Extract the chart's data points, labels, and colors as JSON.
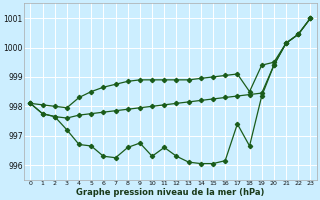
{
  "x": [
    0,
    1,
    2,
    3,
    4,
    5,
    6,
    7,
    8,
    9,
    10,
    11,
    12,
    13,
    14,
    15,
    16,
    17,
    18,
    19,
    20,
    21,
    22,
    23
  ],
  "line_top": [
    998.1,
    998.05,
    998.0,
    997.95,
    998.3,
    998.5,
    998.65,
    998.75,
    998.85,
    998.9,
    998.9,
    998.9,
    998.9,
    998.9,
    998.95,
    999.0,
    999.05,
    999.1,
    998.5,
    999.4,
    999.5,
    1000.15,
    1000.45,
    1001.0
  ],
  "line_mid": [
    998.1,
    997.75,
    997.65,
    997.6,
    997.7,
    997.75,
    997.8,
    997.85,
    997.9,
    997.95,
    998.0,
    998.05,
    998.1,
    998.15,
    998.2,
    998.25,
    998.3,
    998.35,
    998.4,
    998.45,
    999.4,
    1000.15,
    1000.45,
    1001.0
  ],
  "line_bot": [
    998.1,
    997.75,
    997.65,
    997.2,
    996.7,
    996.65,
    996.3,
    996.25,
    996.6,
    996.75,
    996.3,
    996.6,
    996.3,
    996.1,
    996.05,
    996.05,
    996.15,
    997.4,
    996.65,
    998.35,
    999.4,
    1000.15,
    1000.45,
    1001.0
  ],
  "bg_color": "#cceeff",
  "line_color": "#1a5c1a",
  "grid_color": "#ffffff",
  "xlabel": "Graphe pression niveau de la mer (hPa)",
  "ylim": [
    995.5,
    1001.5
  ],
  "yticks": [
    996,
    997,
    998,
    999,
    1000,
    1001
  ],
  "xticks": [
    0,
    1,
    2,
    3,
    4,
    5,
    6,
    7,
    8,
    9,
    10,
    11,
    12,
    13,
    14,
    15,
    16,
    17,
    18,
    19,
    20,
    21,
    22,
    23
  ]
}
